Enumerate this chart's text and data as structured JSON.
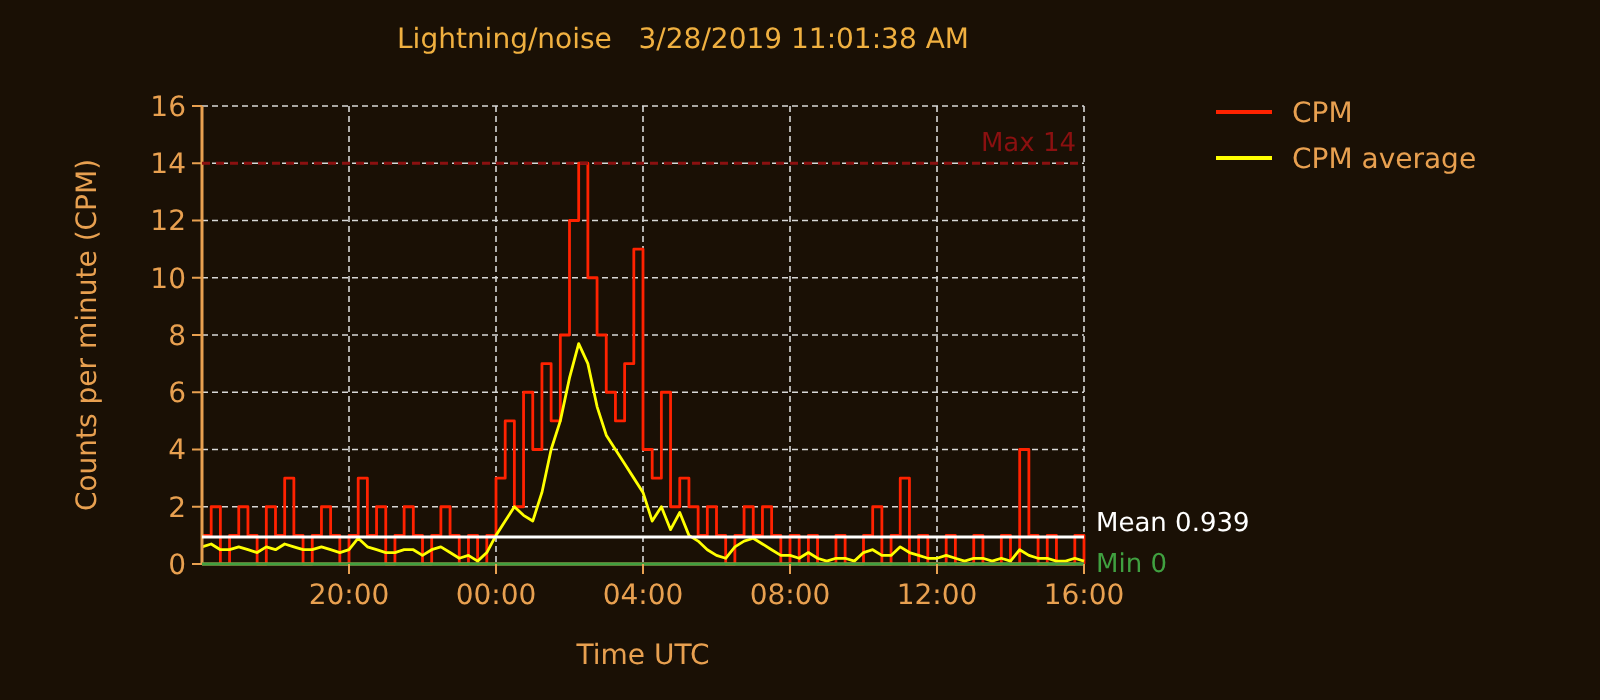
{
  "chart_data": {
    "type": "line",
    "title": "Lightning/noise   3/28/2019 11:01:38 AM",
    "xlabel": "Time UTC",
    "ylabel": "Counts per minute (CPM)",
    "x": [
      "2019-03-27T16:00",
      "2019-03-27T16:15",
      "2019-03-27T16:30",
      "2019-03-27T16:45",
      "2019-03-27T17:00",
      "2019-03-27T17:15",
      "2019-03-27T17:30",
      "2019-03-27T17:45",
      "2019-03-27T18:00",
      "2019-03-27T18:15",
      "2019-03-27T18:30",
      "2019-03-27T18:45",
      "2019-03-27T19:00",
      "2019-03-27T19:15",
      "2019-03-27T19:30",
      "2019-03-27T19:45",
      "2019-03-27T20:00",
      "2019-03-27T20:15",
      "2019-03-27T20:30",
      "2019-03-27T20:45",
      "2019-03-27T21:00",
      "2019-03-27T21:15",
      "2019-03-27T21:30",
      "2019-03-27T21:45",
      "2019-03-27T22:00",
      "2019-03-27T22:15",
      "2019-03-27T22:30",
      "2019-03-27T22:45",
      "2019-03-27T23:00",
      "2019-03-27T23:15",
      "2019-03-27T23:30",
      "2019-03-27T23:45",
      "2019-03-28T00:00",
      "2019-03-28T00:15",
      "2019-03-28T00:30",
      "2019-03-28T00:45",
      "2019-03-28T01:00",
      "2019-03-28T01:15",
      "2019-03-28T01:30",
      "2019-03-28T01:45",
      "2019-03-28T02:00",
      "2019-03-28T02:15",
      "2019-03-28T02:30",
      "2019-03-28T02:45",
      "2019-03-28T03:00",
      "2019-03-28T03:15",
      "2019-03-28T03:30",
      "2019-03-28T03:45",
      "2019-03-28T04:00",
      "2019-03-28T04:15",
      "2019-03-28T04:30",
      "2019-03-28T04:45",
      "2019-03-28T05:00",
      "2019-03-28T05:15",
      "2019-03-28T05:30",
      "2019-03-28T05:45",
      "2019-03-28T06:00",
      "2019-03-28T06:15",
      "2019-03-28T06:30",
      "2019-03-28T06:45",
      "2019-03-28T07:00",
      "2019-03-28T07:15",
      "2019-03-28T07:30",
      "2019-03-28T07:45",
      "2019-03-28T08:00",
      "2019-03-28T08:15",
      "2019-03-28T08:30",
      "2019-03-28T08:45",
      "2019-03-28T09:00",
      "2019-03-28T09:15",
      "2019-03-28T09:30",
      "2019-03-28T09:45",
      "2019-03-28T10:00",
      "2019-03-28T10:15",
      "2019-03-28T10:30",
      "2019-03-28T10:45",
      "2019-03-28T11:00",
      "2019-03-28T11:15",
      "2019-03-28T11:30",
      "2019-03-28T11:45",
      "2019-03-28T12:00",
      "2019-03-28T12:15",
      "2019-03-28T12:30",
      "2019-03-28T12:45",
      "2019-03-28T13:00",
      "2019-03-28T13:15",
      "2019-03-28T13:30",
      "2019-03-28T13:45",
      "2019-03-28T14:00",
      "2019-03-28T14:15",
      "2019-03-28T14:30",
      "2019-03-28T14:45",
      "2019-03-28T15:00",
      "2019-03-28T15:15",
      "2019-03-28T15:30",
      "2019-03-28T15:45",
      "2019-03-28T16:00"
    ],
    "series": [
      {
        "name": "CPM",
        "type": "step",
        "color": "#ff2200",
        "values": [
          1,
          2,
          0,
          1,
          2,
          1,
          0,
          2,
          1,
          3,
          1,
          0,
          1,
          2,
          1,
          0,
          1,
          3,
          1,
          2,
          0,
          1,
          2,
          1,
          0,
          1,
          2,
          1,
          0,
          1,
          0,
          1,
          3,
          5,
          2,
          6,
          4,
          7,
          5,
          8,
          12,
          14,
          10,
          8,
          6,
          5,
          7,
          11,
          4,
          3,
          6,
          2,
          3,
          2,
          1,
          2,
          1,
          0,
          1,
          2,
          1,
          2,
          1,
          0,
          1,
          0,
          1,
          0,
          0,
          1,
          0,
          0,
          1,
          2,
          0,
          1,
          3,
          0,
          1,
          0,
          0,
          1,
          0,
          0,
          1,
          0,
          0,
          1,
          0,
          4,
          1,
          0,
          1,
          0,
          0,
          1,
          0
        ]
      },
      {
        "name": "CPM average",
        "color": "#ffff00",
        "values": [
          0.6,
          0.7,
          0.5,
          0.5,
          0.6,
          0.5,
          0.4,
          0.6,
          0.5,
          0.7,
          0.6,
          0.5,
          0.5,
          0.6,
          0.5,
          0.4,
          0.5,
          0.9,
          0.6,
          0.5,
          0.4,
          0.4,
          0.5,
          0.5,
          0.3,
          0.5,
          0.6,
          0.4,
          0.2,
          0.3,
          0.1,
          0.4,
          1.0,
          1.5,
          2.0,
          1.7,
          1.5,
          2.5,
          4.0,
          5.0,
          6.5,
          7.7,
          7.0,
          5.5,
          4.5,
          4.0,
          3.5,
          3.0,
          2.5,
          1.5,
          2.0,
          1.2,
          1.8,
          1.0,
          0.8,
          0.5,
          0.3,
          0.2,
          0.6,
          0.8,
          0.9,
          0.7,
          0.5,
          0.3,
          0.3,
          0.2,
          0.4,
          0.2,
          0.1,
          0.2,
          0.2,
          0.1,
          0.4,
          0.5,
          0.3,
          0.3,
          0.6,
          0.4,
          0.3,
          0.2,
          0.2,
          0.3,
          0.2,
          0.1,
          0.2,
          0.2,
          0.1,
          0.2,
          0.1,
          0.5,
          0.3,
          0.2,
          0.2,
          0.1,
          0.1,
          0.2,
          0.1
        ]
      }
    ],
    "xlim": [
      "2019-03-27T16:00",
      "2019-03-28T16:00"
    ],
    "xticks": [
      {
        "value": "2019-03-27T20:00",
        "label": "20:00"
      },
      {
        "value": "2019-03-28T00:00",
        "label": "00:00"
      },
      {
        "value": "2019-03-28T04:00",
        "label": "04:00"
      },
      {
        "value": "2019-03-28T08:00",
        "label": "08:00"
      },
      {
        "value": "2019-03-28T12:00",
        "label": "12:00"
      },
      {
        "value": "2019-03-28T16:00",
        "label": "16:00"
      }
    ],
    "ylim": [
      0,
      16
    ],
    "yticks": [
      0,
      2,
      4,
      6,
      8,
      10,
      12,
      14,
      16
    ],
    "grid": true,
    "legend": "right",
    "ref_lines": [
      {
        "axis": "y",
        "value": 14,
        "label": "Max 14",
        "color": "#8b1010",
        "line_style": "dashed"
      },
      {
        "axis": "y",
        "value": 0.939,
        "label": "Mean 0.939",
        "color": "#ffffff",
        "line_style": "solid"
      },
      {
        "axis": "y",
        "value": 0,
        "label": "Min 0",
        "color": "#40a040",
        "line_style": "solid"
      }
    ]
  }
}
